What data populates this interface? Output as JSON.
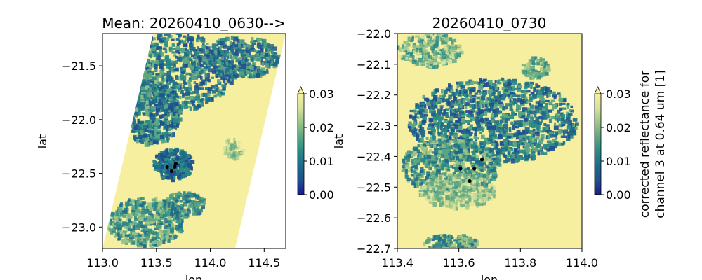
{
  "chart_data": [
    {
      "type": "heatmap",
      "title": "Mean: 20260410_0630-->",
      "xlabel": "lon",
      "ylabel": "lat",
      "xlim": [
        113.0,
        114.7
      ],
      "ylim": [
        -23.2,
        -21.2
      ],
      "xticks": [
        113.0,
        113.5,
        114.0,
        114.5
      ],
      "xtick_labels": [
        "113.0",
        "113.5",
        "114.0",
        "114.5"
      ],
      "yticks": [
        -21.5,
        -22.0,
        -22.5,
        -23.0
      ],
      "ytick_labels": [
        "−21.5",
        "−22.0",
        "−22.5",
        "−23.0"
      ],
      "swath_corners": [
        [
          113.47,
          -21.2
        ],
        [
          114.7,
          -21.2
        ],
        [
          114.23,
          -23.2
        ],
        [
          113.0,
          -23.2
        ]
      ],
      "points": [
        [
          113.6,
          -22.44
        ],
        [
          113.68,
          -22.41
        ],
        [
          113.67,
          -22.44
        ],
        [
          113.64,
          -22.48
        ]
      ],
      "colorbar": {
        "min": 0.0,
        "max": 0.03,
        "extend": "max",
        "ticks": [
          "0.00",
          "0.01",
          "0.02",
          "0.03"
        ],
        "label": ""
      }
    },
    {
      "type": "heatmap",
      "title": "20260410_0730",
      "xlabel": "lon",
      "ylabel": "lat",
      "xlim": [
        113.4,
        114.0
      ],
      "ylim": [
        -22.7,
        -22.0
      ],
      "xticks": [
        113.4,
        113.6,
        113.8,
        114.0
      ],
      "xtick_labels": [
        "113.4",
        "113.6",
        "113.8",
        "114.0"
      ],
      "yticks": [
        -22.0,
        -22.1,
        -22.2,
        -22.3,
        -22.4,
        -22.5,
        -22.6,
        -22.7
      ],
      "ytick_labels": [
        "−22.0",
        "−22.1",
        "−22.2",
        "−22.3",
        "−22.4",
        "−22.5",
        "−22.6",
        "−22.7"
      ],
      "points": [
        [
          113.605,
          -22.44
        ],
        [
          113.65,
          -22.44
        ],
        [
          113.675,
          -22.41
        ],
        [
          113.635,
          -22.48
        ]
      ],
      "colorbar": {
        "min": 0.0,
        "max": 0.03,
        "extend": "max",
        "ticks": [
          "0.00",
          "0.01",
          "0.02",
          "0.03"
        ],
        "label": "corrected reflectance for\nchannel 3 at 0.64 um [1]"
      }
    }
  ],
  "colors": {
    "cmap": [
      "#1a1a8c",
      "#1f4f8f",
      "#1d6a8a",
      "#2a8a86",
      "#5ba683",
      "#9cc487",
      "#d4e19d",
      "#f7efa0"
    ],
    "land": "#f7efa0",
    "point": "#000000"
  }
}
